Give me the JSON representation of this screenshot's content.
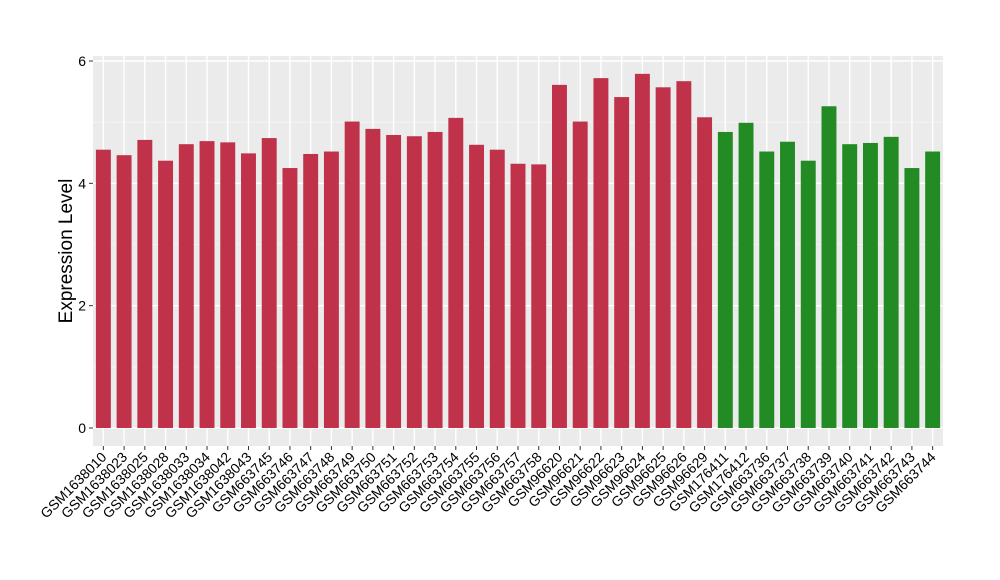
{
  "chart_data": {
    "type": "bar",
    "title": "",
    "xlabel": "",
    "ylabel": "Expression Level",
    "ylim": [
      0,
      6.1
    ],
    "yticks": [
      0,
      2,
      4,
      6
    ],
    "grid": true,
    "legend": "none",
    "colors": {
      "panel_background": "#EBEBEB",
      "grid_major": "#FFFFFF",
      "grid_minor": "#F5F5F5",
      "series_red": "#C0314A",
      "series_green": "#238B23"
    },
    "categories": [
      "GSM1638010",
      "GSM1638023",
      "GSM1638025",
      "GSM1638028",
      "GSM1638033",
      "GSM1638034",
      "GSM1638042",
      "GSM1638043",
      "GSM663745",
      "GSM663746",
      "GSM663747",
      "GSM663748",
      "GSM663749",
      "GSM663750",
      "GSM663751",
      "GSM663752",
      "GSM663753",
      "GSM663754",
      "GSM663755",
      "GSM663756",
      "GSM663757",
      "GSM663758",
      "GSM96620",
      "GSM96621",
      "GSM96622",
      "GSM96623",
      "GSM96624",
      "GSM96625",
      "GSM96626",
      "GSM96629",
      "GSM176411",
      "GSM176412",
      "GSM663736",
      "GSM663737",
      "GSM663738",
      "GSM663739",
      "GSM663740",
      "GSM663741",
      "GSM663742",
      "GSM663743",
      "GSM663744"
    ],
    "values": [
      4.55,
      4.46,
      4.71,
      4.37,
      4.64,
      4.69,
      4.67,
      4.49,
      4.74,
      4.25,
      4.48,
      4.52,
      5.01,
      4.89,
      4.79,
      4.77,
      4.84,
      5.07,
      4.63,
      4.55,
      4.32,
      4.31,
      5.61,
      5.01,
      5.72,
      5.41,
      5.79,
      5.57,
      5.67,
      5.08,
      4.84,
      4.99,
      4.52,
      4.68,
      4.37,
      5.26,
      4.64,
      4.66,
      4.76,
      4.25,
      4.52
    ],
    "bar_colors": [
      "#C0314A",
      "#C0314A",
      "#C0314A",
      "#C0314A",
      "#C0314A",
      "#C0314A",
      "#C0314A",
      "#C0314A",
      "#C0314A",
      "#C0314A",
      "#C0314A",
      "#C0314A",
      "#C0314A",
      "#C0314A",
      "#C0314A",
      "#C0314A",
      "#C0314A",
      "#C0314A",
      "#C0314A",
      "#C0314A",
      "#C0314A",
      "#C0314A",
      "#C0314A",
      "#C0314A",
      "#C0314A",
      "#C0314A",
      "#C0314A",
      "#C0314A",
      "#C0314A",
      "#C0314A",
      "#238B23",
      "#238B23",
      "#238B23",
      "#238B23",
      "#238B23",
      "#238B23",
      "#238B23",
      "#238B23",
      "#238B23",
      "#238B23",
      "#238B23"
    ]
  }
}
